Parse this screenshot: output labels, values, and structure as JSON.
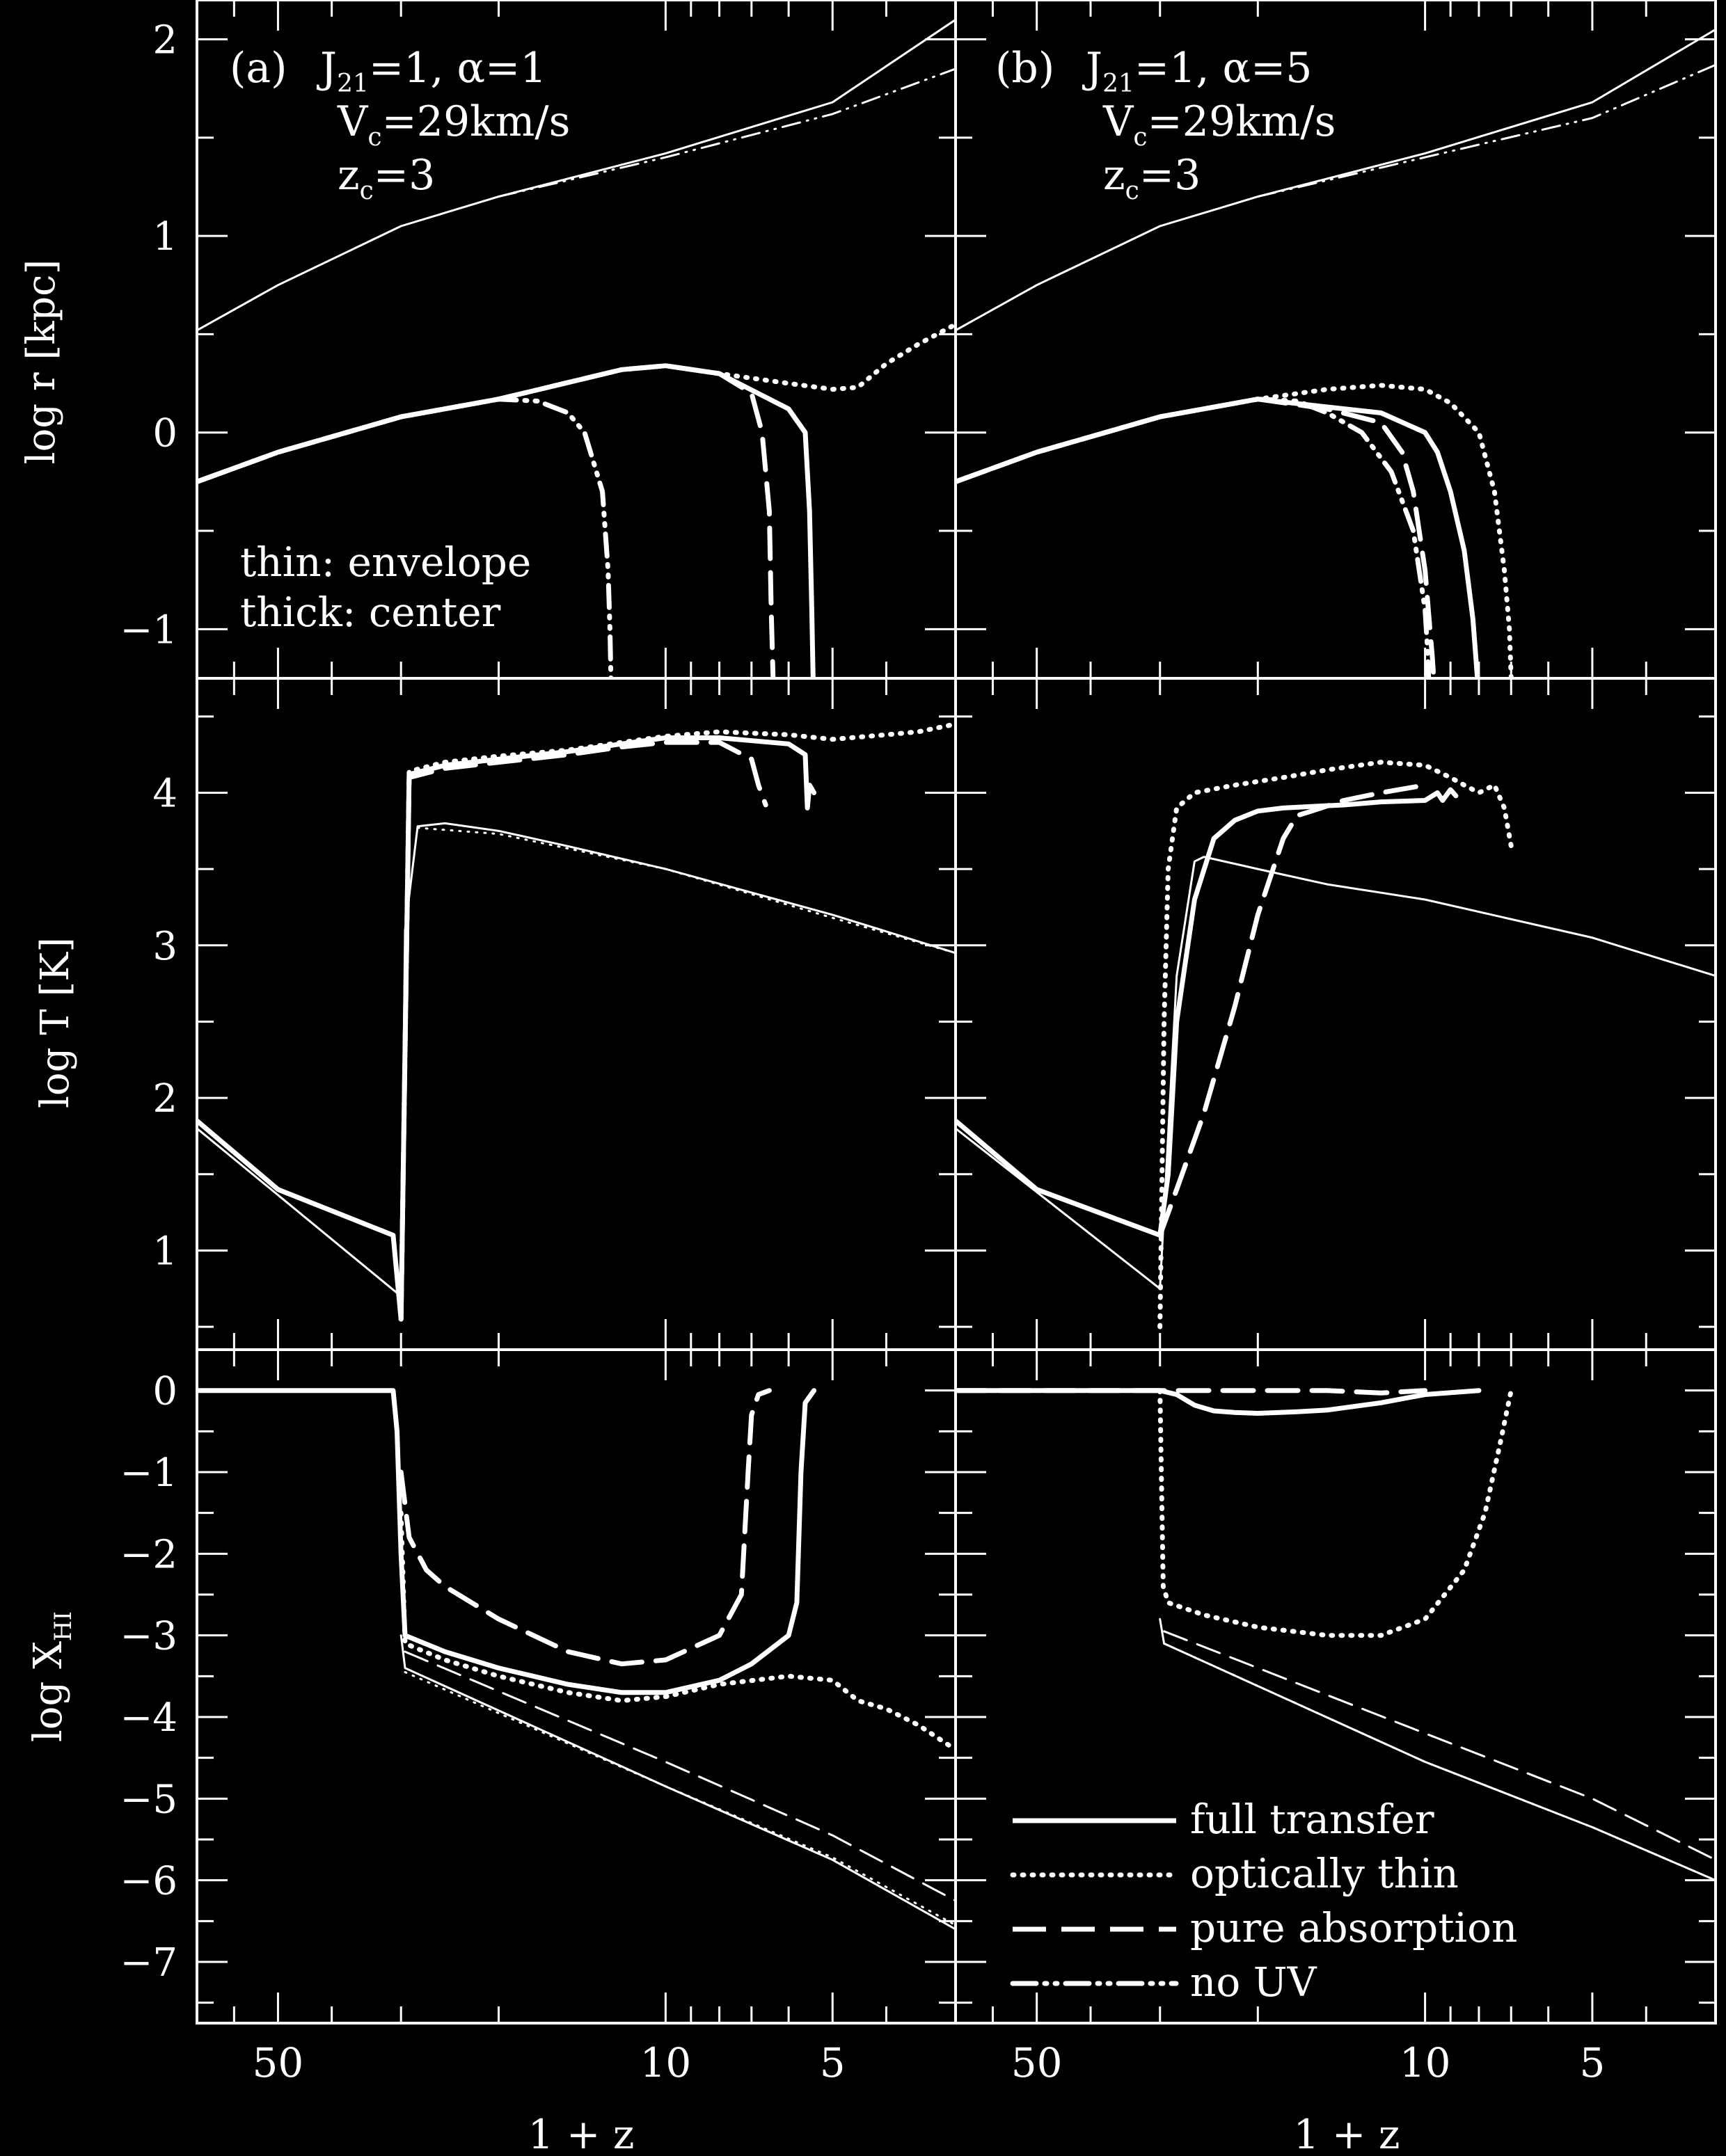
{
  "figure": {
    "xlabel": "1 + z",
    "x_axis": {
      "scale": "log",
      "reversed": true,
      "lim": [
        3,
        70
      ],
      "tick_labels": [
        "50",
        "10",
        "5"
      ],
      "tick_values": [
        50,
        10,
        5
      ]
    },
    "rows": [
      {
        "ylabel": "log r [kpc]",
        "ylim": [
          -1.25,
          2.2
        ],
        "ticks": [
          -1,
          0,
          1,
          2
        ],
        "tick_labels": [
          "−1",
          "0",
          "1",
          "2"
        ]
      },
      {
        "ylabel": "log T [K]",
        "ylim": [
          0.35,
          4.75
        ],
        "ticks": [
          1,
          2,
          3,
          4
        ],
        "tick_labels": [
          "1",
          "2",
          "3",
          "4"
        ]
      },
      {
        "ylabel": "log X_HI",
        "ylim": [
          -7.75,
          0.5
        ],
        "ticks": [
          0,
          -1,
          -2,
          -3,
          -4,
          -5,
          -6,
          -7
        ],
        "tick_labels": [
          "0",
          "−1",
          "−2",
          "−3",
          "−4",
          "−5",
          "−6",
          "−7"
        ]
      }
    ],
    "panel_a": {
      "tag": "(a)",
      "line1": "J₂₁=1, α=1",
      "line2": "Vᴄ=29km/s",
      "line3": "zᴄ=3"
    },
    "panel_b": {
      "tag": "(b)",
      "line1": "J₂₁=1, α=5",
      "line2": "Vᴄ=29km/s",
      "line3": "zᴄ=3"
    },
    "note": {
      "line1": "thin: envelope",
      "line2": "thick: center"
    },
    "legend": {
      "placement": "lower-right of panel (b) bottom row",
      "items": [
        "full transfer",
        "optically thin",
        "pure absorption",
        "no UV"
      ]
    }
  },
  "chart_data": [
    {
      "type": "line",
      "panel": "a",
      "quantity": "log r",
      "series": [
        {
          "name": "full transfer",
          "variant": "center",
          "x": [
            70,
            50,
            30,
            20,
            12,
            10,
            8,
            6,
            5.6,
            5.5,
            5.45,
            5.42
          ],
          "y": [
            -0.25,
            -0.1,
            0.08,
            0.17,
            0.32,
            0.34,
            0.3,
            0.12,
            0.0,
            -0.4,
            -0.9,
            -1.25
          ]
        },
        {
          "name": "optically thin",
          "variant": "center",
          "x": [
            70,
            50,
            30,
            20,
            12,
            10,
            8,
            6,
            5,
            4.5,
            4,
            3.5,
            3
          ],
          "y": [
            -0.25,
            -0.1,
            0.08,
            0.17,
            0.32,
            0.34,
            0.3,
            0.25,
            0.22,
            0.23,
            0.35,
            0.45,
            0.55
          ]
        },
        {
          "name": "pure absorption",
          "variant": "center",
          "x": [
            70,
            50,
            30,
            20,
            12,
            10,
            8,
            7,
            6.7,
            6.5,
            6.45,
            6.4
          ],
          "y": [
            -0.25,
            -0.1,
            0.08,
            0.17,
            0.32,
            0.34,
            0.3,
            0.2,
            0.0,
            -0.4,
            -0.9,
            -1.25
          ]
        },
        {
          "name": "no UV",
          "variant": "center",
          "x": [
            70,
            50,
            30,
            20,
            17,
            15,
            14,
            13,
            12.7,
            12.6,
            12.55
          ],
          "y": [
            -0.25,
            -0.1,
            0.08,
            0.17,
            0.16,
            0.1,
            0.0,
            -0.3,
            -0.7,
            -1.0,
            -1.25
          ]
        },
        {
          "name": "full transfer",
          "variant": "envelope",
          "x": [
            70,
            50,
            30,
            20,
            10,
            5,
            3
          ],
          "y": [
            0.52,
            0.75,
            1.05,
            1.2,
            1.42,
            1.68,
            2.1
          ]
        },
        {
          "name": "no UV",
          "variant": "envelope",
          "x": [
            20,
            10,
            5,
            3
          ],
          "y": [
            1.2,
            1.4,
            1.62,
            1.85
          ]
        }
      ]
    },
    {
      "type": "line",
      "panel": "b",
      "quantity": "log r",
      "series": [
        {
          "name": "full transfer",
          "variant": "center",
          "x": [
            70,
            50,
            30,
            20,
            15,
            12,
            10,
            9.5,
            9,
            8.5,
            8.2,
            8.1,
            8.05
          ],
          "y": [
            -0.25,
            -0.1,
            0.08,
            0.17,
            0.13,
            0.1,
            0.0,
            -0.1,
            -0.3,
            -0.6,
            -0.95,
            -1.15,
            -1.25
          ]
        },
        {
          "name": "optically thin",
          "variant": "center",
          "x": [
            70,
            50,
            30,
            20,
            15,
            12,
            10,
            9,
            8,
            7.5,
            7.2,
            7.05,
            7.0
          ],
          "y": [
            -0.25,
            -0.1,
            0.08,
            0.17,
            0.22,
            0.24,
            0.22,
            0.15,
            0.0,
            -0.3,
            -0.7,
            -1.0,
            -1.25
          ]
        },
        {
          "name": "pure absorption",
          "variant": "center",
          "x": [
            70,
            50,
            30,
            20,
            15,
            12,
            11,
            10.5,
            10,
            9.8,
            9.7,
            9.65
          ],
          "y": [
            -0.25,
            -0.1,
            0.08,
            0.17,
            0.12,
            0.05,
            -0.1,
            -0.3,
            -0.7,
            -1.0,
            -1.15,
            -1.25
          ]
        },
        {
          "name": "no UV",
          "variant": "center",
          "x": [
            70,
            50,
            30,
            20,
            17,
            15,
            13,
            11.5,
            10.5,
            10,
            9.9,
            9.85
          ],
          "y": [
            -0.25,
            -0.1,
            0.08,
            0.17,
            0.16,
            0.1,
            0.0,
            -0.2,
            -0.5,
            -0.9,
            -1.1,
            -1.25
          ]
        },
        {
          "name": "full transfer",
          "variant": "envelope",
          "x": [
            70,
            50,
            30,
            20,
            10,
            5,
            3
          ],
          "y": [
            0.52,
            0.75,
            1.05,
            1.2,
            1.42,
            1.68,
            2.05
          ]
        },
        {
          "name": "no UV",
          "variant": "envelope",
          "x": [
            20,
            10,
            5,
            3
          ],
          "y": [
            1.2,
            1.4,
            1.6,
            1.87
          ]
        }
      ]
    },
    {
      "type": "line",
      "panel": "a",
      "quantity": "log T",
      "series": [
        {
          "name": "full transfer",
          "variant": "center",
          "x": [
            70,
            50,
            31,
            30,
            29,
            25,
            20,
            15,
            12,
            10,
            8,
            6,
            5.6,
            5.55,
            5.5,
            5.4
          ],
          "y": [
            1.85,
            1.4,
            1.1,
            0.55,
            4.12,
            4.18,
            4.22,
            4.27,
            4.32,
            4.36,
            4.36,
            4.32,
            4.25,
            3.9,
            4.05,
            4.0
          ]
        },
        {
          "name": "optically thin",
          "variant": "center",
          "x": [
            30,
            29,
            25,
            20,
            15,
            12,
            10,
            8,
            6,
            5,
            4,
            3.5,
            3
          ],
          "y": [
            0.55,
            4.14,
            4.2,
            4.24,
            4.28,
            4.33,
            4.37,
            4.4,
            4.38,
            4.35,
            4.38,
            4.4,
            4.45
          ]
        },
        {
          "name": "pure absorption",
          "variant": "center",
          "x": [
            30,
            29,
            25,
            20,
            15,
            12,
            10,
            8,
            7,
            6.8,
            6.6
          ],
          "y": [
            0.55,
            4.1,
            4.16,
            4.2,
            4.25,
            4.3,
            4.33,
            4.33,
            4.22,
            4.05,
            3.92
          ]
        },
        {
          "name": "full transfer",
          "variant": "envelope",
          "x": [
            70,
            30,
            29.5,
            28,
            25,
            20,
            15,
            10,
            5,
            3
          ],
          "y": [
            1.8,
            0.7,
            3.1,
            3.78,
            3.8,
            3.75,
            3.65,
            3.5,
            3.2,
            2.95
          ]
        },
        {
          "name": "optically thin",
          "variant": "envelope",
          "x": [
            28,
            20,
            10,
            5,
            3
          ],
          "y": [
            3.77,
            3.73,
            3.5,
            3.18,
            2.95
          ]
        }
      ]
    },
    {
      "type": "line",
      "panel": "b",
      "quantity": "log T",
      "series": [
        {
          "name": "full transfer",
          "variant": "center",
          "x": [
            70,
            50,
            30,
            29,
            28,
            26,
            24,
            22,
            20,
            18,
            16,
            14,
            12,
            10,
            9.5,
            9.3,
            9,
            8.8
          ],
          "y": [
            1.85,
            1.4,
            1.1,
            1.5,
            2.5,
            3.3,
            3.7,
            3.82,
            3.88,
            3.9,
            3.91,
            3.92,
            3.94,
            3.95,
            4.0,
            3.95,
            4.02,
            3.98
          ]
        },
        {
          "name": "optically thin",
          "variant": "center",
          "x": [
            30,
            29.5,
            29,
            28,
            26,
            22,
            18,
            15,
            12,
            10,
            9,
            8.5,
            8,
            7.5,
            7.2,
            7.0
          ],
          "y": [
            0.5,
            2.5,
            3.5,
            3.9,
            4.0,
            4.05,
            4.1,
            4.15,
            4.2,
            4.18,
            4.1,
            4.05,
            4.0,
            4.05,
            3.9,
            3.65
          ]
        },
        {
          "name": "pure absorption",
          "variant": "center",
          "x": [
            30,
            28,
            25,
            22,
            20,
            18,
            17,
            16,
            14,
            12,
            10
          ],
          "y": [
            1.1,
            1.4,
            1.9,
            2.6,
            3.2,
            3.7,
            3.85,
            3.88,
            3.95,
            4.0,
            4.05
          ]
        },
        {
          "name": "full transfer",
          "variant": "envelope",
          "x": [
            70,
            30,
            28,
            26,
            25,
            20,
            15,
            10,
            5,
            3
          ],
          "y": [
            1.8,
            0.75,
            2.8,
            3.55,
            3.58,
            3.5,
            3.4,
            3.3,
            3.05,
            2.8
          ]
        }
      ]
    },
    {
      "type": "line",
      "panel": "a",
      "quantity": "log X_HI",
      "series": [
        {
          "name": "full transfer",
          "variant": "center",
          "x": [
            70,
            31,
            30.5,
            30,
            29.5,
            25,
            20,
            15,
            12,
            10,
            8,
            7,
            6,
            5.8,
            5.7,
            5.6,
            5.4
          ],
          "y": [
            0,
            0,
            -0.5,
            -2.0,
            -3.0,
            -3.2,
            -3.4,
            -3.6,
            -3.7,
            -3.7,
            -3.55,
            -3.35,
            -3.0,
            -2.6,
            -1.0,
            -0.15,
            0
          ]
        },
        {
          "name": "optically thin",
          "variant": "center",
          "x": [
            30,
            29.5,
            25,
            20,
            15,
            12,
            10,
            8,
            6,
            5,
            4.5,
            4,
            3.5,
            3
          ],
          "y": [
            -1.5,
            -3.1,
            -3.3,
            -3.5,
            -3.7,
            -3.8,
            -3.75,
            -3.6,
            -3.5,
            -3.55,
            -3.8,
            -3.9,
            -4.1,
            -4.4
          ]
        },
        {
          "name": "pure absorption",
          "variant": "center",
          "x": [
            30,
            29,
            27,
            25,
            20,
            15,
            12,
            10,
            8,
            7.3,
            7.1,
            7,
            6.8,
            6.5
          ],
          "y": [
            -1.0,
            -1.8,
            -2.2,
            -2.4,
            -2.8,
            -3.2,
            -3.35,
            -3.3,
            -3.0,
            -2.5,
            -1.0,
            -0.3,
            -0.05,
            0
          ]
        },
        {
          "name": "full transfer",
          "variant": "envelope",
          "x": [
            30,
            29.5,
            10,
            5,
            3
          ],
          "y": [
            -3.0,
            -3.4,
            -4.85,
            -5.75,
            -6.6
          ]
        },
        {
          "name": "optically thin",
          "variant": "envelope",
          "x": [
            29.5,
            10,
            5,
            3
          ],
          "y": [
            -3.45,
            -4.85,
            -5.72,
            -6.55
          ]
        },
        {
          "name": "pure absorption",
          "variant": "envelope",
          "x": [
            29.5,
            10,
            5,
            3
          ],
          "y": [
            -3.2,
            -4.55,
            -5.45,
            -6.25
          ]
        }
      ]
    },
    {
      "type": "line",
      "panel": "b",
      "quantity": "log X_HI",
      "series": [
        {
          "name": "full transfer",
          "variant": "center",
          "x": [
            70,
            30,
            28,
            26,
            24,
            22,
            20,
            17,
            15,
            12,
            10,
            8
          ],
          "y": [
            0,
            0,
            -0.05,
            -0.18,
            -0.25,
            -0.27,
            -0.28,
            -0.26,
            -0.24,
            -0.15,
            -0.05,
            0
          ]
        },
        {
          "name": "optically thin",
          "variant": "center",
          "x": [
            30,
            29.6,
            29,
            25,
            20,
            15,
            12,
            10,
            8.5,
            7.8,
            7.3,
            7.05,
            7.0
          ],
          "y": [
            0,
            -2.4,
            -2.6,
            -2.75,
            -2.9,
            -3.0,
            -3.0,
            -2.8,
            -2.2,
            -1.5,
            -0.6,
            -0.1,
            0
          ]
        },
        {
          "name": "pure absorption",
          "variant": "center",
          "x": [
            70,
            30,
            20,
            15,
            12,
            10
          ],
          "y": [
            0,
            0,
            0,
            0,
            -0.03,
            0
          ]
        },
        {
          "name": "full transfer",
          "variant": "envelope",
          "x": [
            30,
            29.5,
            10,
            5,
            3
          ],
          "y": [
            -2.8,
            -3.1,
            -4.55,
            -5.35,
            -6.0
          ]
        },
        {
          "name": "optically thin",
          "variant": "envelope",
          "x": [
            29.5,
            10,
            5,
            3
          ],
          "y": [
            -3.1,
            -4.55,
            -5.35,
            -6.0
          ]
        },
        {
          "name": "pure absorption",
          "variant": "envelope",
          "x": [
            29.5,
            10,
            5,
            3
          ],
          "y": [
            -2.95,
            -4.2,
            -5.0,
            -5.75
          ]
        }
      ]
    }
  ]
}
